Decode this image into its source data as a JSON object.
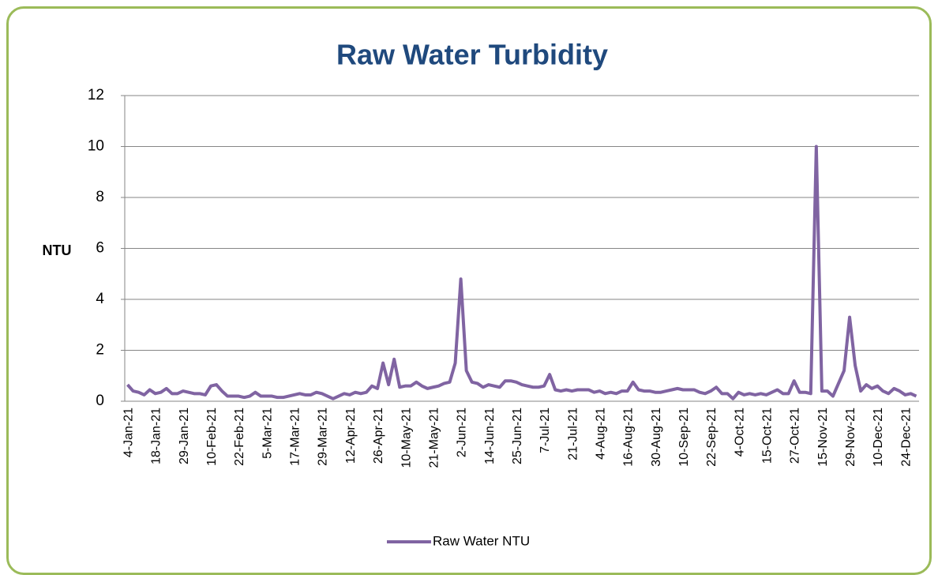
{
  "chart_data": {
    "type": "line",
    "title": "Raw Water Turbidity",
    "ylabel": "NTU",
    "categories": [
      "4-Jan-21",
      null,
      null,
      null,
      null,
      "18-Jan-21",
      null,
      null,
      null,
      null,
      "29-Jan-21",
      null,
      null,
      null,
      null,
      "10-Feb-21",
      null,
      null,
      null,
      null,
      "22-Feb-21",
      null,
      null,
      null,
      null,
      "5-Mar-21",
      null,
      null,
      null,
      null,
      "17-Mar-21",
      null,
      null,
      null,
      null,
      "29-Mar-21",
      null,
      null,
      null,
      null,
      "12-Apr-21",
      null,
      null,
      null,
      null,
      "26-Apr-21",
      null,
      null,
      null,
      null,
      "10-May-21",
      null,
      null,
      null,
      null,
      "21-May-21",
      null,
      null,
      null,
      null,
      "2-Jun-21",
      null,
      null,
      null,
      null,
      "14-Jun-21",
      null,
      null,
      null,
      null,
      "25-Jun-21",
      null,
      null,
      null,
      null,
      "7-Jul-21",
      null,
      null,
      null,
      null,
      "21-Jul-21",
      null,
      null,
      null,
      null,
      "4-Aug-21",
      null,
      null,
      null,
      null,
      "16-Aug-21",
      null,
      null,
      null,
      null,
      "30-Aug-21",
      null,
      null,
      null,
      null,
      "10-Sep-21",
      null,
      null,
      null,
      null,
      "22-Sep-21",
      null,
      null,
      null,
      null,
      "4-Oct-21",
      null,
      null,
      null,
      null,
      "15-Oct-21",
      null,
      null,
      null,
      null,
      "27-Oct-21",
      null,
      null,
      null,
      null,
      "15-Nov-21",
      null,
      null,
      null,
      null,
      "29-Nov-21",
      null,
      null,
      null,
      null,
      "10-Dec-21",
      null,
      null,
      null,
      null,
      "24-Dec-21",
      null,
      null
    ],
    "series": [
      {
        "name": "Raw Water NTU",
        "color": "#8064a2",
        "values": [
          0.65,
          0.4,
          0.35,
          0.25,
          0.45,
          0.3,
          0.35,
          0.5,
          0.3,
          0.3,
          0.4,
          0.35,
          0.3,
          0.3,
          0.25,
          0.6,
          0.65,
          0.4,
          0.2,
          0.2,
          0.2,
          0.15,
          0.2,
          0.35,
          0.2,
          0.2,
          0.2,
          0.15,
          0.15,
          0.2,
          0.25,
          0.3,
          0.25,
          0.25,
          0.35,
          0.3,
          0.2,
          0.1,
          0.2,
          0.3,
          0.25,
          0.35,
          0.3,
          0.35,
          0.6,
          0.5,
          1.5,
          0.65,
          1.65,
          0.55,
          0.6,
          0.6,
          0.75,
          0.6,
          0.5,
          0.55,
          0.6,
          0.7,
          0.75,
          1.5,
          4.8,
          1.2,
          0.75,
          0.7,
          0.55,
          0.65,
          0.6,
          0.55,
          0.8,
          0.8,
          0.75,
          0.65,
          0.6,
          0.55,
          0.55,
          0.6,
          1.05,
          0.45,
          0.4,
          0.45,
          0.4,
          0.45,
          0.45,
          0.45,
          0.35,
          0.4,
          0.3,
          0.35,
          0.3,
          0.4,
          0.4,
          0.75,
          0.45,
          0.4,
          0.4,
          0.35,
          0.35,
          0.4,
          0.45,
          0.5,
          0.45,
          0.45,
          0.45,
          0.35,
          0.3,
          0.4,
          0.55,
          0.3,
          0.3,
          0.1,
          0.35,
          0.25,
          0.3,
          0.25,
          0.3,
          0.25,
          0.35,
          0.45,
          0.3,
          0.3,
          0.8,
          0.35,
          0.35,
          0.3,
          10.0,
          0.4,
          0.4,
          0.2,
          0.7,
          1.2,
          3.3,
          1.4,
          0.4,
          0.65,
          0.5,
          0.6,
          0.4,
          0.3,
          0.5,
          0.4,
          0.25,
          0.3,
          0.2
        ]
      }
    ],
    "ylim": [
      0,
      12
    ],
    "yticks": [
      0,
      2,
      4,
      6,
      8,
      10,
      12
    ],
    "grid": true,
    "legend": "bottom"
  }
}
